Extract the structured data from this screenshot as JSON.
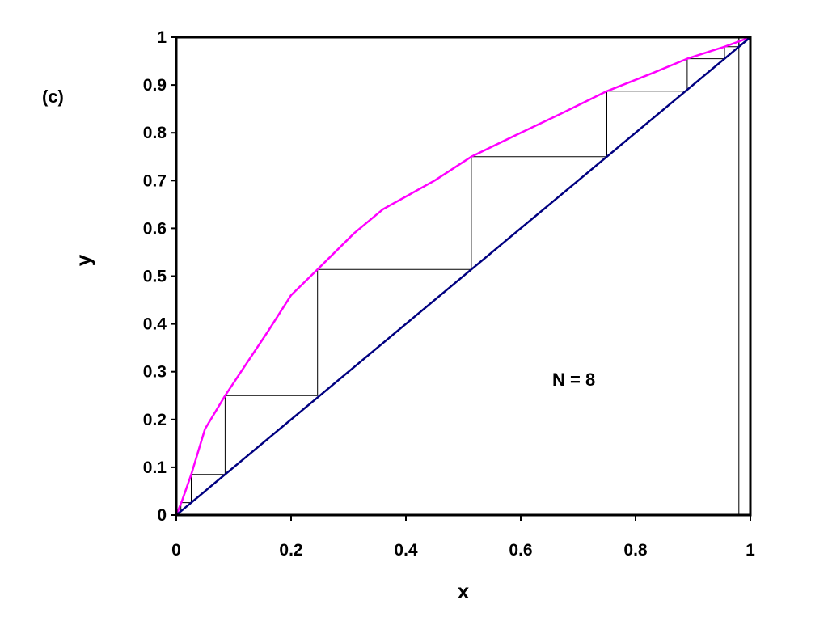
{
  "panel_label": "(c)",
  "annotation": "N = 8",
  "chart_data": {
    "type": "line",
    "title": "",
    "xlabel": "x",
    "ylabel": "y",
    "xlim": [
      0,
      1
    ],
    "ylim": [
      0,
      1
    ],
    "xticks": [
      "0",
      "0.2",
      "0.4",
      "0.6",
      "0.8",
      "1"
    ],
    "xtick_values": [
      0,
      0.2,
      0.4,
      0.6,
      0.8,
      1
    ],
    "yticks": [
      "0",
      "0.1",
      "0.2",
      "0.3",
      "0.4",
      "0.5",
      "0.6",
      "0.7",
      "0.8",
      "0.9",
      "1"
    ],
    "ytick_values": [
      0,
      0.1,
      0.2,
      0.3,
      0.4,
      0.5,
      0.6,
      0.7,
      0.8,
      0.9,
      1
    ],
    "grid": false,
    "series": [
      {
        "color": "#ff00ff",
        "x": [
          0,
          0.01,
          0.026,
          0.05,
          0.085,
          0.11,
          0.16,
          0.2,
          0.246,
          0.31,
          0.36,
          0.45,
          0.514,
          0.6,
          0.67,
          0.75,
          0.83,
          0.89,
          0.955,
          1
        ],
        "y": [
          0,
          0.03,
          0.085,
          0.18,
          0.25,
          0.295,
          0.385,
          0.46,
          0.514,
          0.59,
          0.64,
          0.7,
          0.75,
          0.8,
          0.84,
          0.887,
          0.925,
          0.955,
          0.98,
          1
        ]
      },
      {
        "color": "#000080",
        "x": [
          0,
          1
        ],
        "y": [
          0,
          1
        ]
      },
      {
        "color": "#000000",
        "x": [
          1,
          0.98,
          0.98,
          0.955,
          0.955,
          0.89,
          0.89,
          0.75,
          0.75,
          0.514,
          0.514,
          0.246,
          0.246,
          0.085,
          0.085,
          0.026,
          0.026,
          0.008,
          0.008
        ],
        "y": [
          1,
          1,
          0.98,
          0.98,
          0.955,
          0.955,
          0.887,
          0.887,
          0.75,
          0.75,
          0.514,
          0.514,
          0.25,
          0.25,
          0.085,
          0.085,
          0.026,
          0.026,
          0.008
        ]
      }
    ],
    "extra_vertical_line": {
      "x": 0.98,
      "y": [
        0,
        1
      ]
    }
  }
}
